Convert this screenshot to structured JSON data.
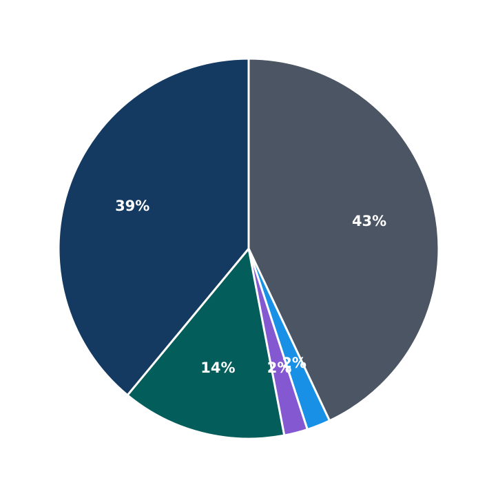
{
  "chart_data": {
    "type": "pie",
    "values": [
      43,
      2,
      2,
      14,
      39
    ],
    "value_labels": [
      "43%",
      "2%",
      "2%",
      "14%",
      "39%"
    ],
    "colors": [
      "#4b5563",
      "#1790e6",
      "#8458d0",
      "#035e5b",
      "#143a62"
    ]
  }
}
